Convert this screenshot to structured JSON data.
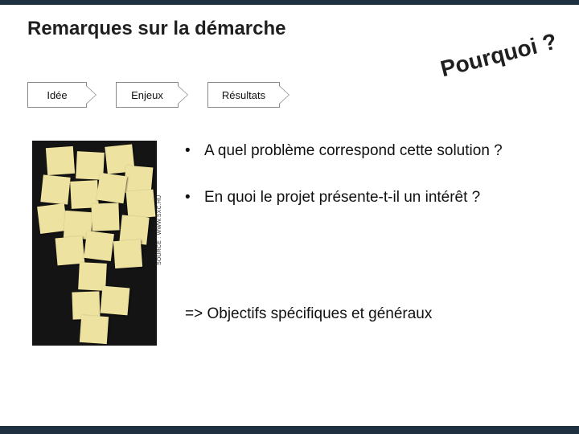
{
  "title": "Remarques sur la démarche",
  "callout": "Pourquoi ?",
  "flow": {
    "step1": "Idée",
    "step2": "Enjeux",
    "step3": "Résultats"
  },
  "bullets": {
    "b1": "A quel problème correspond cette solution ?",
    "b2": "En quoi le projet présente-t-il un intérêt ?"
  },
  "conclusion": "=> Objectifs spécifiques et généraux",
  "image_credit": "SOURCE : WWW.SXC.HU",
  "colors": {
    "bar": "#1f3040",
    "sticky": "#eee2a0",
    "imgbg": "#141414"
  },
  "sticky_positions": [
    [
      18,
      8,
      -4
    ],
    [
      55,
      14,
      3
    ],
    [
      92,
      6,
      -6
    ],
    [
      115,
      32,
      5
    ],
    [
      12,
      44,
      6
    ],
    [
      48,
      50,
      -3
    ],
    [
      82,
      42,
      8
    ],
    [
      118,
      62,
      -5
    ],
    [
      8,
      80,
      -7
    ],
    [
      40,
      88,
      4
    ],
    [
      74,
      78,
      -2
    ],
    [
      110,
      94,
      6
    ],
    [
      30,
      120,
      -5
    ],
    [
      66,
      114,
      7
    ],
    [
      102,
      124,
      -4
    ],
    [
      58,
      152,
      3
    ],
    [
      50,
      188,
      -2
    ],
    [
      86,
      182,
      5
    ],
    [
      60,
      218,
      4
    ]
  ]
}
